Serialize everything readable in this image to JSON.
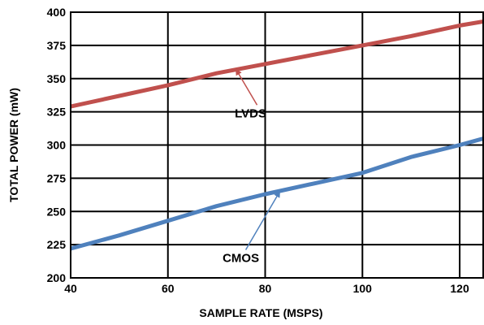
{
  "chart_data": {
    "type": "line",
    "xlabel": "SAMPLE RATE (MSPS)",
    "ylabel": "TOTAL POWER (mW)",
    "xlim": [
      40,
      125
    ],
    "ylim": [
      200,
      400
    ],
    "x_ticks": [
      40,
      60,
      80,
      100,
      120
    ],
    "y_ticks": [
      200,
      225,
      250,
      275,
      300,
      325,
      350,
      375,
      400
    ],
    "x_tick_labels": [
      "40",
      "60",
      "80",
      "100",
      "120"
    ],
    "y_tick_labels": [
      "200",
      "225",
      "250",
      "275",
      "300",
      "325",
      "350",
      "375",
      "400"
    ],
    "grid": true,
    "legend": "none",
    "series": [
      {
        "name": "LVDS",
        "color": "#c0504d",
        "x": [
          40,
          50,
          60,
          70,
          80,
          90,
          100,
          110,
          120,
          125
        ],
        "y": [
          329,
          337,
          345,
          354,
          361,
          368,
          375,
          382,
          390,
          393
        ]
      },
      {
        "name": "CMOS",
        "color": "#4f81bd",
        "x": [
          40,
          50,
          60,
          70,
          80,
          90,
          100,
          110,
          120,
          125
        ],
        "y": [
          222,
          232,
          243,
          254,
          263,
          271,
          279,
          291,
          300,
          305
        ]
      }
    ],
    "annotations": [
      {
        "text": "LVDS",
        "series": "LVDS",
        "text_at": [
          77,
          324
        ],
        "arrow_to": [
          74,
          357
        ]
      },
      {
        "text": "CMOS",
        "series": "CMOS",
        "text_at": [
          75,
          215
        ],
        "arrow_to": [
          83,
          265
        ]
      }
    ]
  }
}
